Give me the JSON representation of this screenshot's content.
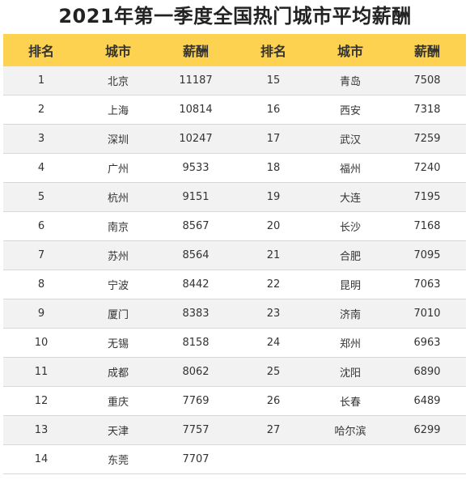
{
  "title": "2021年第一季度全国热门城市平均薪酬",
  "headers": [
    "排名",
    "城市",
    "薪酬",
    "排名",
    "城市",
    "薪酬"
  ],
  "left": [
    {
      "rank": "1",
      "city": "北京",
      "salary": "11187"
    },
    {
      "rank": "2",
      "city": "上海",
      "salary": "10814"
    },
    {
      "rank": "3",
      "city": "深圳",
      "salary": "10247"
    },
    {
      "rank": "4",
      "city": "广州",
      "salary": "9533"
    },
    {
      "rank": "5",
      "city": "杭州",
      "salary": "9151"
    },
    {
      "rank": "6",
      "city": "南京",
      "salary": "8567"
    },
    {
      "rank": "7",
      "city": "苏州",
      "salary": "8564"
    },
    {
      "rank": "8",
      "city": "宁波",
      "salary": "8442"
    },
    {
      "rank": "9",
      "city": "厦门",
      "salary": "8383"
    },
    {
      "rank": "10",
      "city": "无锡",
      "salary": "8158"
    },
    {
      "rank": "11",
      "city": "成都",
      "salary": "8062"
    },
    {
      "rank": "12",
      "city": "重庆",
      "salary": "7769"
    },
    {
      "rank": "13",
      "city": "天津",
      "salary": "7757"
    },
    {
      "rank": "14",
      "city": "东莞",
      "salary": "7707"
    }
  ],
  "right": [
    {
      "rank": "15",
      "city": "青岛",
      "salary": "7508"
    },
    {
      "rank": "16",
      "city": "西安",
      "salary": "7318"
    },
    {
      "rank": "17",
      "city": "武汉",
      "salary": "7259"
    },
    {
      "rank": "18",
      "city": "福州",
      "salary": "7240"
    },
    {
      "rank": "19",
      "city": "大连",
      "salary": "7195"
    },
    {
      "rank": "20",
      "city": "长沙",
      "salary": "7168"
    },
    {
      "rank": "21",
      "city": "合肥",
      "salary": "7095"
    },
    {
      "rank": "22",
      "city": "昆明",
      "salary": "7063"
    },
    {
      "rank": "23",
      "city": "济南",
      "salary": "7010"
    },
    {
      "rank": "24",
      "city": "郑州",
      "salary": "6963"
    },
    {
      "rank": "25",
      "city": "沈阳",
      "salary": "6890"
    },
    {
      "rank": "26",
      "city": "长春",
      "salary": "6489"
    },
    {
      "rank": "27",
      "city": "哈尔滨",
      "salary": "6299"
    }
  ],
  "colors": {
    "header_bg": "#fcd250",
    "stripe_bg": "#f2f2f2",
    "row_border": "#d8d8d8"
  }
}
